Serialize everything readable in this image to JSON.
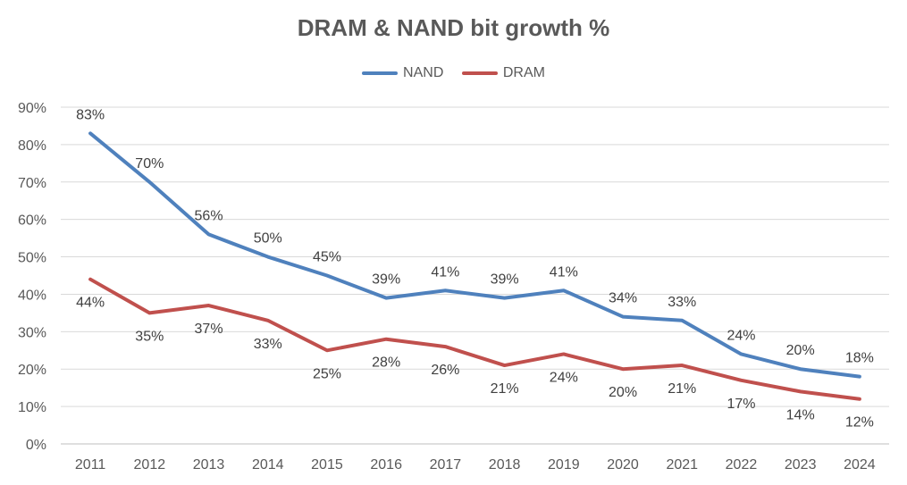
{
  "chart_data": {
    "type": "line",
    "title": "DRAM & NAND bit growth %",
    "xlabel": "",
    "ylabel": "",
    "x": [
      "2011",
      "2012",
      "2013",
      "2014",
      "2015",
      "2016",
      "2017",
      "2018",
      "2019",
      "2020",
      "2021",
      "2022",
      "2023",
      "2024"
    ],
    "ylim": [
      0,
      90
    ],
    "y_ticks": [
      "0%",
      "10%",
      "20%",
      "30%",
      "40%",
      "50%",
      "60%",
      "70%",
      "80%",
      "90%"
    ],
    "grid": true,
    "legend_position": "top-center",
    "series": [
      {
        "name": "NAND",
        "color": "#4f81bd",
        "values": [
          83,
          70,
          56,
          50,
          45,
          39,
          41,
          39,
          41,
          34,
          33,
          24,
          20,
          18
        ],
        "labels": [
          "83%",
          "70%",
          "56%",
          "50%",
          "45%",
          "39%",
          "41%",
          "39%",
          "41%",
          "34%",
          "33%",
          "24%",
          "20%",
          "18%"
        ],
        "label_position": "above"
      },
      {
        "name": "DRAM",
        "color": "#c0504d",
        "values": [
          44,
          35,
          37,
          33,
          25,
          28,
          26,
          21,
          24,
          20,
          21,
          17,
          14,
          12
        ],
        "labels": [
          "44%",
          "35%",
          "37%",
          "33%",
          "25%",
          "28%",
          "26%",
          "21%",
          "24%",
          "20%",
          "21%",
          "17%",
          "14%",
          "12%"
        ],
        "label_position": "below"
      }
    ]
  }
}
